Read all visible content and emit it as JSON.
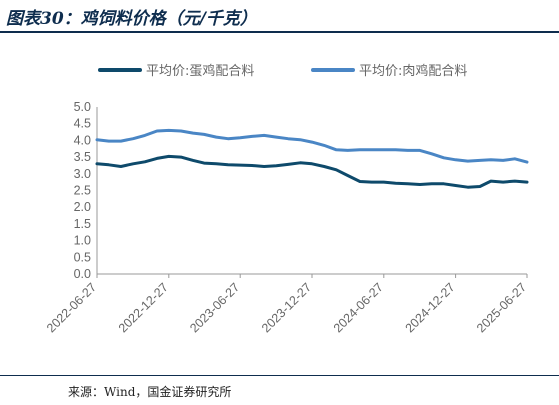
{
  "header": {
    "title": "图表30：鸡饲料价格（元/千克）"
  },
  "footer": {
    "source": "来源：Wind，国金证券研究所"
  },
  "colors": {
    "series_dark": "#0e4a6b",
    "series_light": "#4a86c5",
    "accent": "#0e2d4e"
  },
  "chart_data": {
    "type": "line",
    "title": "鸡饲料价格（元/千克）",
    "xlabel": "",
    "ylabel": "",
    "ylim": [
      0.0,
      5.0
    ],
    "y_ticks": [
      "0.0",
      "0.5",
      "1.0",
      "1.5",
      "2.0",
      "2.5",
      "3.0",
      "3.5",
      "4.0",
      "4.5",
      "5.0"
    ],
    "x_ticks": [
      "2022-06-27",
      "2022-12-27",
      "2023-06-27",
      "2023-12-27",
      "2024-06-27",
      "2024-12-27",
      "2025-06-27"
    ],
    "x_range": [
      "2022-06-27",
      "2025-06-27"
    ],
    "grid": false,
    "legend_placement": "top",
    "series": [
      {
        "name": "平均价:蛋鸡配合料",
        "x": [
          "2022-06-27",
          "2022-07-27",
          "2022-08-27",
          "2022-09-27",
          "2022-10-27",
          "2022-11-27",
          "2022-12-27",
          "2023-01-27",
          "2023-02-27",
          "2023-03-27",
          "2023-04-27",
          "2023-05-27",
          "2023-06-27",
          "2023-07-27",
          "2023-08-27",
          "2023-09-27",
          "2023-10-27",
          "2023-11-27",
          "2023-12-27",
          "2024-01-27",
          "2024-02-27",
          "2024-03-27",
          "2024-04-27",
          "2024-05-27",
          "2024-06-27",
          "2024-07-27",
          "2024-08-27",
          "2024-09-27",
          "2024-10-27",
          "2024-11-27",
          "2024-12-27",
          "2025-01-27",
          "2025-02-27",
          "2025-03-27",
          "2025-04-27",
          "2025-05-27",
          "2025-06-27"
        ],
        "values": [
          3.3,
          3.27,
          3.22,
          3.3,
          3.36,
          3.46,
          3.52,
          3.5,
          3.4,
          3.32,
          3.3,
          3.27,
          3.26,
          3.25,
          3.22,
          3.24,
          3.28,
          3.33,
          3.3,
          3.22,
          3.12,
          2.95,
          2.77,
          2.75,
          2.75,
          2.72,
          2.7,
          2.68,
          2.7,
          2.7,
          2.65,
          2.6,
          2.62,
          2.78,
          2.75,
          2.78,
          2.75
        ]
      },
      {
        "name": "平均价:肉鸡配合料",
        "x": [
          "2022-06-27",
          "2022-07-27",
          "2022-08-27",
          "2022-09-27",
          "2022-10-27",
          "2022-11-27",
          "2022-12-27",
          "2023-01-27",
          "2023-02-27",
          "2023-03-27",
          "2023-04-27",
          "2023-05-27",
          "2023-06-27",
          "2023-07-27",
          "2023-08-27",
          "2023-09-27",
          "2023-10-27",
          "2023-11-27",
          "2023-12-27",
          "2024-01-27",
          "2024-02-27",
          "2024-03-27",
          "2024-04-27",
          "2024-05-27",
          "2024-06-27",
          "2024-07-27",
          "2024-08-27",
          "2024-09-27",
          "2024-10-27",
          "2024-11-27",
          "2024-12-27",
          "2025-01-27",
          "2025-02-27",
          "2025-03-27",
          "2025-04-27",
          "2025-05-27",
          "2025-06-27"
        ],
        "values": [
          4.02,
          3.98,
          3.98,
          4.05,
          4.15,
          4.28,
          4.3,
          4.28,
          4.22,
          4.18,
          4.1,
          4.05,
          4.08,
          4.12,
          4.15,
          4.1,
          4.05,
          4.02,
          3.95,
          3.85,
          3.72,
          3.7,
          3.72,
          3.72,
          3.72,
          3.72,
          3.7,
          3.7,
          3.6,
          3.48,
          3.42,
          3.38,
          3.4,
          3.42,
          3.4,
          3.45,
          3.35
        ]
      }
    ]
  }
}
